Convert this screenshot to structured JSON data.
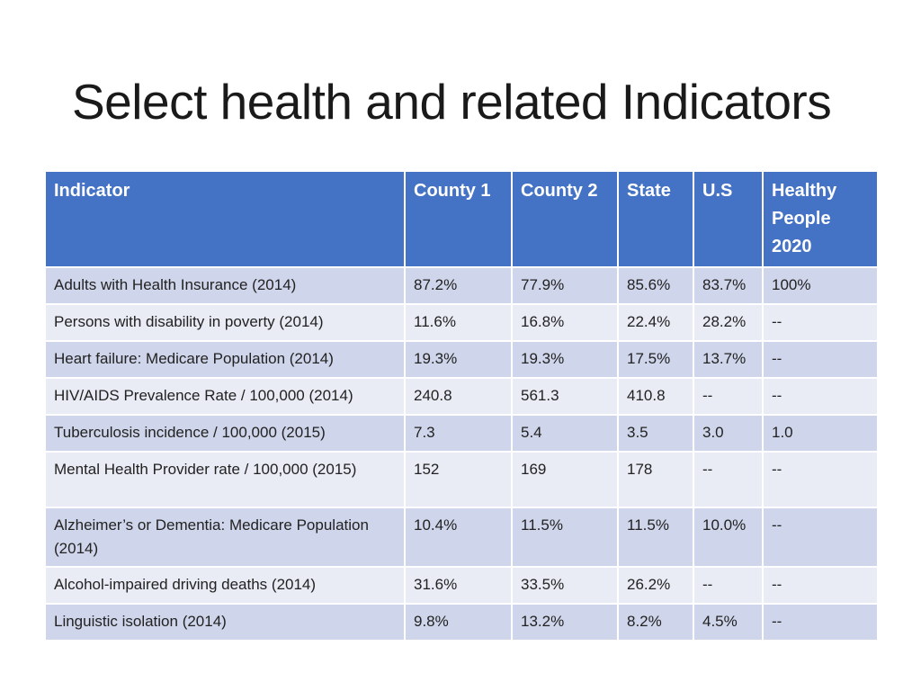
{
  "title": "Select health and related Indicators",
  "table": {
    "headers": [
      "Indicator",
      "County 1",
      "County 2",
      "State",
      "U.S",
      "Healthy People 2020"
    ],
    "rows": [
      [
        "Adults with Health Insurance (2014)",
        "87.2%",
        "77.9%",
        "85.6%",
        "83.7%",
        "100%"
      ],
      [
        "Persons with disability in poverty (2014)",
        "11.6%",
        "16.8%",
        "22.4%",
        "28.2%",
        "--"
      ],
      [
        "Heart failure: Medicare Population (2014)",
        "19.3%",
        "19.3%",
        "17.5%",
        "13.7%",
        "--"
      ],
      [
        "HIV/AIDS Prevalence Rate / 100,000 (2014)",
        "240.8",
        "561.3",
        "410.8",
        "--",
        "--"
      ],
      [
        "Tuberculosis incidence / 100,000 (2015)",
        "7.3",
        "5.4",
        "3.5",
        "3.0",
        "1.0"
      ],
      [
        "Mental Health Provider rate / 100,000 (2015)",
        "152",
        "169",
        "178",
        "--",
        "--"
      ],
      [
        "Alzheimer’s or Dementia: Medicare Population (2014)",
        "10.4%",
        "11.5%",
        "11.5%",
        "10.0%",
        "--"
      ],
      [
        "Alcohol-impaired driving deaths (2014)",
        "31.6%",
        "33.5%",
        "26.2%",
        "--",
        "--"
      ],
      [
        "Linguistic isolation (2014)",
        "9.8%",
        "13.2%",
        "8.2%",
        "4.5%",
        "--"
      ]
    ]
  },
  "colors": {
    "header_background": "#4472c4",
    "row_band_dark": "#cfd5ea",
    "row_band_light": "#e9ebf5"
  }
}
